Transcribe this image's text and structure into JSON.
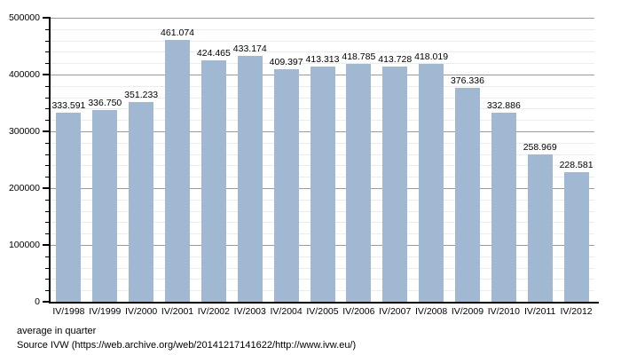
{
  "chart_data": {
    "type": "bar",
    "title": "",
    "categories": [
      "IV/1998",
      "IV/1999",
      "IV/2000",
      "IV/2001",
      "IV/2002",
      "IV/2003",
      "IV/2004",
      "IV/2005",
      "IV/2006",
      "IV/2007",
      "IV/2008",
      "IV/2009",
      "IV/2010",
      "IV/2011",
      "IV/2012"
    ],
    "values": [
      333591,
      336750,
      351233,
      461074,
      424465,
      433174,
      409397,
      413313,
      418785,
      413728,
      418019,
      376336,
      332886,
      258969,
      228581
    ],
    "value_labels": [
      "333.591",
      "336.750",
      "351.233",
      "461.074",
      "424.465",
      "433.174",
      "409.397",
      "413.313",
      "418.785",
      "413.728",
      "418.019",
      "376.336",
      "332.886",
      "258.969",
      "228.581"
    ],
    "xlabel": "",
    "ylabel": "",
    "ylim": [
      0,
      500000
    ],
    "y_major_step": 100000,
    "y_minor_step": 20000,
    "y_tick_labels": [
      "0",
      "100000",
      "200000",
      "300000",
      "400000",
      "500000"
    ],
    "grid": true,
    "legend": "none",
    "bar_color": "#a0b8d1",
    "major_grid_color": "#9c9c9c",
    "minor_grid_color": "#ececec",
    "axis_color": "#000000"
  },
  "footer": {
    "line1": "average in quarter",
    "line2": "Source IVW (https://web.archive.org/web/20141217141622/http://www.ivw.eu/)"
  }
}
